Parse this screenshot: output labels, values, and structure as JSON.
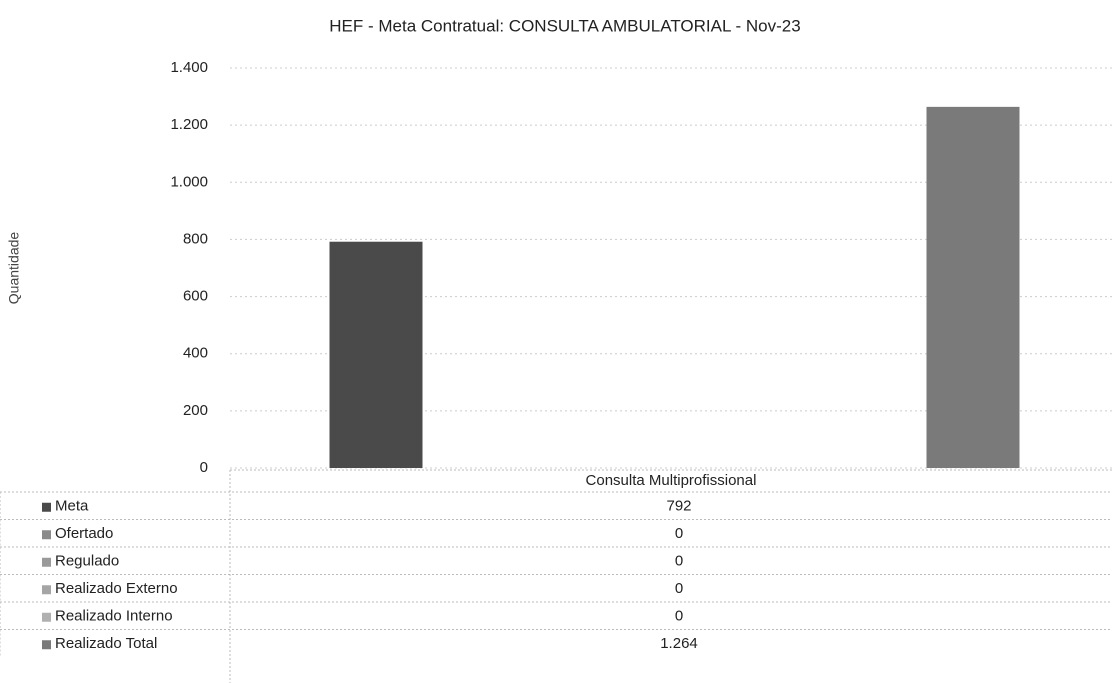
{
  "chart_data": {
    "type": "bar",
    "title": "HEF - Meta Contratual: CONSULTA AMBULATORIAL - Nov-23",
    "y_label": "Quantidade",
    "categories": [
      "Consulta Multiprofissional"
    ],
    "series": [
      {
        "name": "Meta",
        "color": "#4a4a4a",
        "values": [
          792
        ],
        "value_labels": [
          "792"
        ]
      },
      {
        "name": "Ofertado",
        "color": "#8a8a8a",
        "values": [
          0
        ],
        "value_labels": [
          "0"
        ]
      },
      {
        "name": "Regulado",
        "color": "#9a9a9a",
        "values": [
          0
        ],
        "value_labels": [
          "0"
        ]
      },
      {
        "name": "Realizado Externo",
        "color": "#a5a5a5",
        "values": [
          0
        ],
        "value_labels": [
          "0"
        ]
      },
      {
        "name": "Realizado Interno",
        "color": "#b0b0b0",
        "values": [
          0
        ],
        "value_labels": [
          "0"
        ]
      },
      {
        "name": "Realizado Total",
        "color": "#7a7a7a",
        "values": [
          1264
        ],
        "value_labels": [
          "1.264"
        ]
      }
    ],
    "ylim": [
      0,
      1400
    ],
    "yticks": [
      0,
      200,
      400,
      600,
      800,
      {
        "value": 1000,
        "label": "1.000"
      },
      {
        "value": 1200,
        "label": "1.200"
      },
      {
        "value": 1400,
        "label": "1.400"
      }
    ],
    "grid": true
  }
}
